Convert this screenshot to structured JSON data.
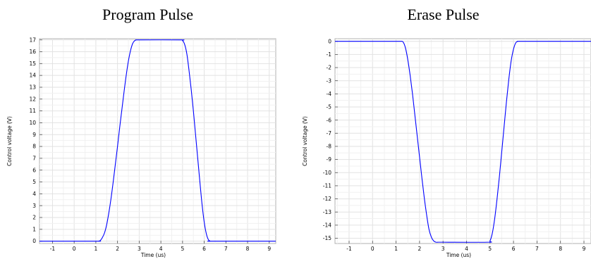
{
  "chart_data": [
    {
      "type": "line",
      "title": "Program Pulse",
      "xlabel": "Time (us)",
      "ylabel": "Control voltage (V)",
      "xlim": [
        -1.6,
        9.3
      ],
      "ylim": [
        -0.2,
        17.1
      ],
      "xticks": [
        -1,
        0,
        1,
        2,
        3,
        4,
        5,
        6,
        7,
        8,
        9
      ],
      "yticks": [
        0,
        1,
        2,
        3,
        4,
        5,
        6,
        7,
        8,
        9,
        10,
        11,
        12,
        13,
        14,
        15,
        16,
        17
      ],
      "grid": true,
      "series": [
        {
          "color": "#0000ff",
          "x": [
            -1.6,
            1.0,
            1.1,
            1.2,
            1.3,
            1.4,
            1.5,
            1.6,
            1.7,
            1.8,
            1.9,
            2.0,
            2.1,
            2.2,
            2.3,
            2.4,
            2.5,
            2.6,
            2.7,
            2.8,
            2.9,
            3.0,
            4.9,
            5.0,
            5.1,
            5.2,
            5.3,
            5.4,
            5.5,
            5.6,
            5.7,
            5.8,
            5.9,
            6.0,
            6.1,
            6.2,
            6.3,
            6.4,
            9.3
          ],
          "y": [
            0,
            0,
            0,
            0.05,
            0.3,
            0.7,
            1.4,
            2.4,
            3.6,
            5.0,
            6.5,
            8.0,
            9.6,
            11.1,
            12.6,
            14.0,
            15.2,
            16.1,
            16.7,
            16.95,
            17.0,
            17.0,
            17.0,
            16.95,
            16.6,
            15.8,
            14.4,
            12.8,
            11.0,
            9.0,
            7.0,
            5.0,
            3.1,
            1.6,
            0.6,
            0.1,
            0.0,
            0.0,
            0
          ]
        }
      ]
    },
    {
      "type": "line",
      "title": "Erase Pulse",
      "xlabel": "Time (us)",
      "ylabel": "Control voltage (V)",
      "xlim": [
        -1.6,
        9.3
      ],
      "ylim": [
        -15.4,
        0.2
      ],
      "xticks": [
        -1,
        0,
        1,
        2,
        3,
        4,
        5,
        6,
        7,
        8,
        9
      ],
      "yticks": [
        0,
        -1,
        -2,
        -3,
        -4,
        -5,
        -6,
        -7,
        -8,
        -9,
        -10,
        -11,
        -12,
        -13,
        -14,
        -15
      ],
      "grid": true,
      "series": [
        {
          "color": "#0000ff",
          "x": [
            -1.6,
            1.0,
            1.1,
            1.2,
            1.3,
            1.4,
            1.5,
            1.6,
            1.7,
            1.8,
            1.9,
            2.0,
            2.1,
            2.2,
            2.3,
            2.4,
            2.5,
            2.6,
            2.7,
            2.8,
            2.9,
            3.0,
            4.9,
            5.0,
            5.1,
            5.2,
            5.3,
            5.4,
            5.5,
            5.6,
            5.7,
            5.8,
            5.9,
            6.0,
            6.1,
            6.2,
            6.3,
            6.4,
            9.3
          ],
          "y": [
            0,
            0,
            0,
            0,
            -0.05,
            -0.5,
            -1.4,
            -2.6,
            -4.0,
            -5.6,
            -7.2,
            -8.8,
            -10.4,
            -11.9,
            -13.2,
            -14.3,
            -14.9,
            -15.2,
            -15.3,
            -15.3,
            -15.3,
            -15.3,
            -15.3,
            -15.2,
            -14.6,
            -13.5,
            -12.0,
            -10.3,
            -8.4,
            -6.5,
            -4.6,
            -2.9,
            -1.5,
            -0.6,
            -0.1,
            0,
            0,
            0,
            0
          ]
        }
      ]
    }
  ]
}
